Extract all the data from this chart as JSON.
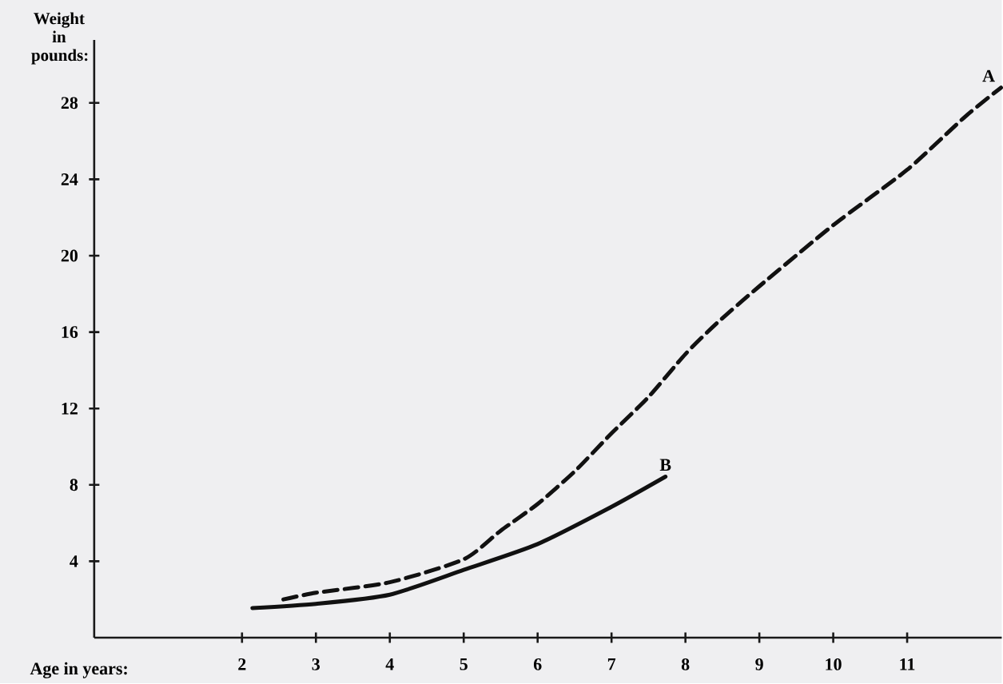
{
  "chart_data": {
    "type": "line",
    "xlabel": "Age in years:",
    "ylabel": "Weight in pounds:",
    "xlim": [
      0,
      12.28
    ],
    "ylim": [
      0,
      31.3
    ],
    "xticks": [
      2,
      3,
      4,
      5,
      6,
      7,
      8,
      9,
      10,
      11
    ],
    "yticks": [
      4,
      8,
      12,
      16,
      20,
      24,
      28
    ],
    "marker": "none",
    "series": [
      {
        "name": "A",
        "color": "#111111",
        "line_style": "dashed",
        "x": [
          2.56,
          3,
          4,
          5,
          5.5,
          6,
          6.5,
          7,
          7.5,
          8,
          8.42,
          9,
          10,
          11,
          11.79,
          12.27
        ],
        "values": [
          2.0,
          2.35,
          2.9,
          4.1,
          5.6,
          7.0,
          8.7,
          10.7,
          12.6,
          14.85,
          16.45,
          18.4,
          21.6,
          24.5,
          27.3,
          28.8
        ]
      },
      {
        "name": "B",
        "color": "#111111",
        "line_style": "solid",
        "x": [
          2.14,
          3,
          4,
          5,
          6,
          7,
          7.73
        ],
        "values": [
          1.55,
          1.77,
          2.25,
          3.55,
          4.9,
          6.85,
          8.43
        ]
      }
    ]
  }
}
